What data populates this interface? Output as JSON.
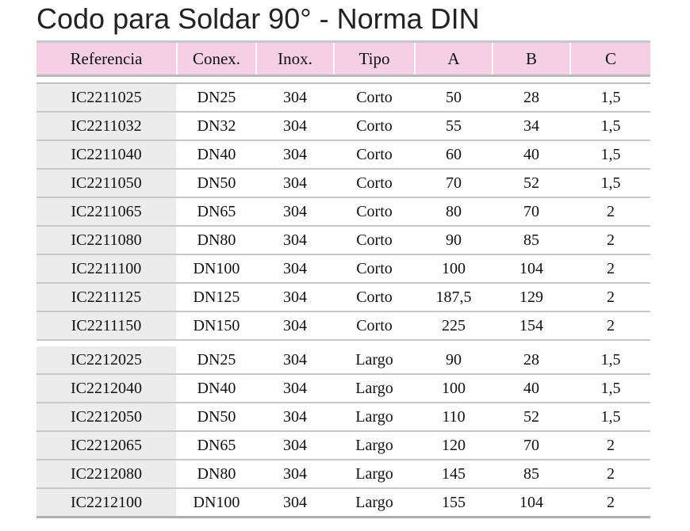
{
  "title": "Codo para Soldar 90° - Norma DIN",
  "columns": [
    "Referencia",
    "Conex.",
    "Inox.",
    "Tipo",
    "A",
    "B",
    "C"
  ],
  "groups": [
    [
      [
        "IC2211025",
        "DN25",
        "304",
        "Corto",
        "50",
        "28",
        "1,5"
      ],
      [
        "IC2211032",
        "DN32",
        "304",
        "Corto",
        "55",
        "34",
        "1,5"
      ],
      [
        "IC2211040",
        "DN40",
        "304",
        "Corto",
        "60",
        "40",
        "1,5"
      ],
      [
        "IC2211050",
        "DN50",
        "304",
        "Corto",
        "70",
        "52",
        "1,5"
      ],
      [
        "IC2211065",
        "DN65",
        "304",
        "Corto",
        "80",
        "70",
        "2"
      ],
      [
        "IC2211080",
        "DN80",
        "304",
        "Corto",
        "90",
        "85",
        "2"
      ],
      [
        "IC2211100",
        "DN100",
        "304",
        "Corto",
        "100",
        "104",
        "2"
      ],
      [
        "IC2211125",
        "DN125",
        "304",
        "Corto",
        "187,5",
        "129",
        "2"
      ],
      [
        "IC2211150",
        "DN150",
        "304",
        "Corto",
        "225",
        "154",
        "2"
      ]
    ],
    [
      [
        "IC2212025",
        "DN25",
        "304",
        "Largo",
        "90",
        "28",
        "1,5"
      ],
      [
        "IC2212040",
        "DN40",
        "304",
        "Largo",
        "100",
        "40",
        "1,5"
      ],
      [
        "IC2212050",
        "DN50",
        "304",
        "Largo",
        "110",
        "52",
        "1,5"
      ],
      [
        "IC2212065",
        "DN65",
        "304",
        "Largo",
        "120",
        "70",
        "2"
      ],
      [
        "IC2212080",
        "DN80",
        "304",
        "Largo",
        "145",
        "85",
        "2"
      ],
      [
        "IC2212100",
        "DN100",
        "304",
        "Largo",
        "155",
        "104",
        "2"
      ]
    ]
  ]
}
